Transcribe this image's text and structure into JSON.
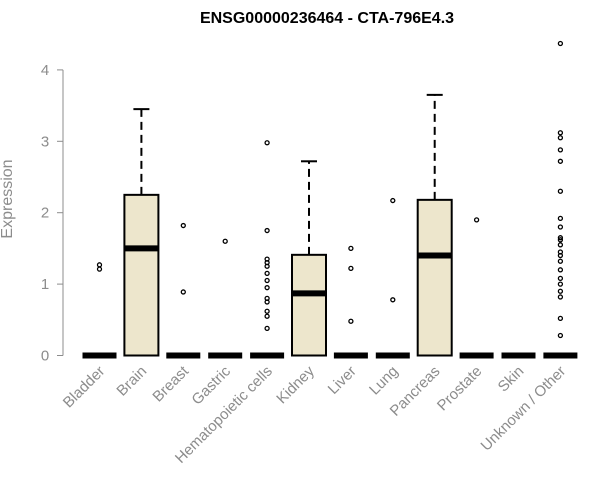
{
  "chart_data": {
    "type": "box",
    "title": "ENSG00000236464 - CTA-796E4.3",
    "xlabel": "",
    "ylabel": "Expression",
    "ylim": [
      -0.15,
      4.45
    ],
    "yticks": [
      0,
      1,
      2,
      3,
      4
    ],
    "grid": false,
    "legend": "none",
    "box_color": "#ede6cc",
    "categories": [
      "Bladder",
      "Brain",
      "Breast",
      "Gastric",
      "Hematopoietic cells",
      "Kidney",
      "Liver",
      "Lung",
      "Pancreas",
      "Prostate",
      "Skin",
      "Unknown / Other"
    ],
    "boxes": [
      {
        "q1": 0,
        "median": 0,
        "q3": 0,
        "whisker_low": 0,
        "whisker_high": 0,
        "outliers": [
          1.21,
          1.27
        ]
      },
      {
        "q1": 0,
        "median": 1.5,
        "q3": 2.25,
        "whisker_low": 0,
        "whisker_high": 3.45,
        "outliers": []
      },
      {
        "q1": 0,
        "median": 0,
        "q3": 0,
        "whisker_low": 0,
        "whisker_high": 0,
        "outliers": [
          0.89,
          1.82
        ]
      },
      {
        "q1": 0,
        "median": 0,
        "q3": 0,
        "whisker_low": 0,
        "whisker_high": 0,
        "outliers": [
          1.6
        ]
      },
      {
        "q1": 0,
        "median": 0,
        "q3": 0,
        "whisker_low": 0,
        "whisker_high": 0,
        "outliers": [
          0.38,
          0.55,
          0.62,
          0.75,
          0.8,
          0.95,
          1.05,
          1.15,
          1.25,
          1.3,
          1.35,
          1.75,
          2.98
        ]
      },
      {
        "q1": 0,
        "median": 0.87,
        "q3": 1.41,
        "whisker_low": 0,
        "whisker_high": 2.72,
        "outliers": []
      },
      {
        "q1": 0,
        "median": 0,
        "q3": 0,
        "whisker_low": 0,
        "whisker_high": 0,
        "outliers": [
          0.48,
          1.22,
          1.5
        ]
      },
      {
        "q1": 0,
        "median": 0,
        "q3": 0,
        "whisker_low": 0,
        "whisker_high": 0,
        "outliers": [
          0.78,
          2.17
        ]
      },
      {
        "q1": 0,
        "median": 1.4,
        "q3": 2.18,
        "whisker_low": 0,
        "whisker_high": 3.65,
        "outliers": []
      },
      {
        "q1": 0,
        "median": 0,
        "q3": 0,
        "whisker_low": 0,
        "whisker_high": 0,
        "outliers": [
          1.9
        ]
      },
      {
        "q1": 0,
        "median": 0,
        "q3": 0,
        "whisker_low": 0,
        "whisker_high": 0,
        "outliers": []
      },
      {
        "q1": 0,
        "median": 0,
        "q3": 0,
        "whisker_low": 0,
        "whisker_high": 0,
        "outliers": [
          0.28,
          0.52,
          0.82,
          0.9,
          1.0,
          1.08,
          1.2,
          1.32,
          1.4,
          1.45,
          1.55,
          1.62,
          1.65,
          1.8,
          1.92,
          2.3,
          2.72,
          2.88,
          3.05,
          3.12,
          4.37
        ]
      }
    ]
  }
}
